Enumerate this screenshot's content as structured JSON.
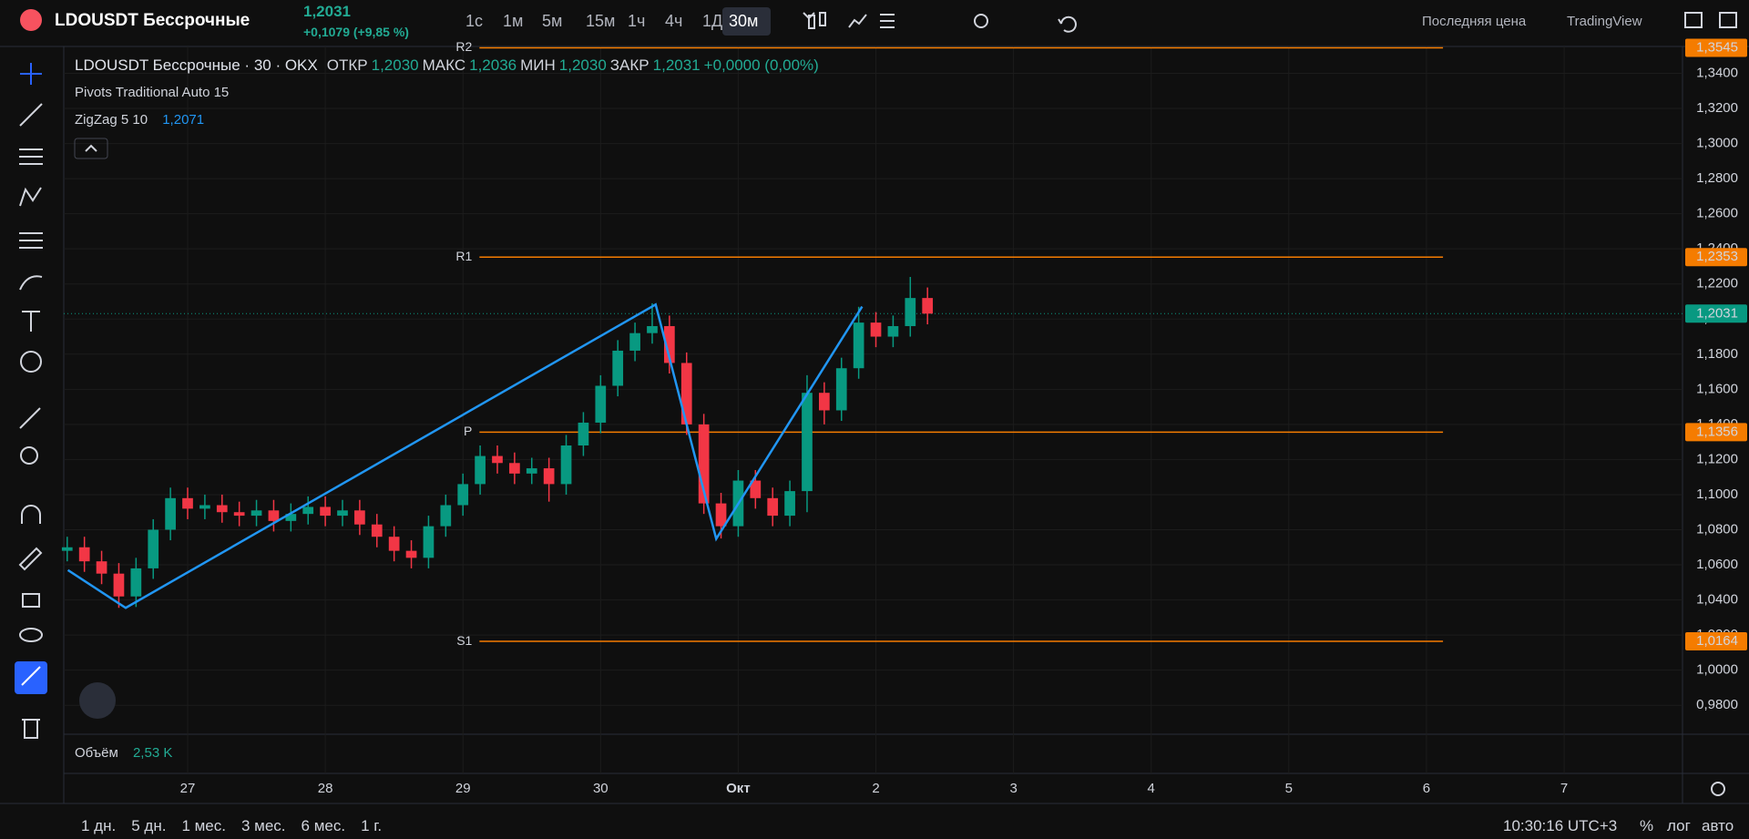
{
  "header": {
    "symbol": "LDOUSDT Бессрочные",
    "price": "1,2031",
    "change": "+0,1079 (+9,85 %)",
    "intervals": [
      "1с",
      "1м",
      "5м",
      "15м",
      "1ч",
      "4ч",
      "1Д",
      "30м"
    ],
    "price_type": "Последняя цена",
    "layout": "TradingView"
  },
  "legend": {
    "title": "LDOUSDT Бессрочные · 30 · OKX",
    "open_label": "ОТКР",
    "open": "1,2030",
    "high_label": "МАКС",
    "high": "1,2036",
    "low_label": "МИН",
    "low": "1,2030",
    "close_label": "ЗАКР",
    "close": "1,2031",
    "change": "+0,0000 (0,00%)",
    "pivots": "Pivots Traditional Auto 15"
  },
  "volume": {
    "label": "Объём",
    "value": "2,53 K"
  },
  "footer": {
    "ranges": [
      "1 дн.",
      "5 дн.",
      "1 мес.",
      "3 мес.",
      "6 мес.",
      "1 г."
    ],
    "time": "10:30:16 UTC+3",
    "percent": "%",
    "log": "лог",
    "auto": "авто"
  },
  "chart_data": {
    "type": "candlestick",
    "x": [
      26.125,
      26.25,
      26.375,
      26.5,
      26.625,
      26.75,
      26.875,
      27.0,
      27.125,
      27.25,
      27.375,
      27.5,
      27.625,
      27.75,
      27.875,
      28.0,
      28.125,
      28.25,
      28.375,
      28.5,
      28.625,
      28.75,
      28.875,
      29.0,
      29.125,
      29.25,
      29.375,
      29.5,
      29.625,
      29.75,
      29.875,
      30.0,
      30.125,
      30.25,
      30.375,
      30.5,
      30.625,
      30.75,
      30.875,
      31.0,
      31.125,
      31.25,
      31.375,
      31.5,
      31.625,
      31.75,
      31.875,
      32.0,
      32.125,
      32.25,
      32.375
    ],
    "open": [
      1.068,
      1.07,
      1.062,
      1.055,
      1.042,
      1.058,
      1.08,
      1.098,
      1.092,
      1.094,
      1.09,
      1.088,
      1.091,
      1.085,
      1.089,
      1.093,
      1.088,
      1.091,
      1.083,
      1.076,
      1.068,
      1.064,
      1.082,
      1.094,
      1.106,
      1.122,
      1.118,
      1.112,
      1.115,
      1.106,
      1.128,
      1.141,
      1.162,
      1.182,
      1.192,
      1.196,
      1.175,
      1.14,
      1.095,
      1.082,
      1.108,
      1.098,
      1.088,
      1.102,
      1.158,
      1.148,
      1.172,
      1.198,
      1.19,
      1.196,
      1.212
    ],
    "high": [
      1.076,
      1.076,
      1.068,
      1.061,
      1.064,
      1.086,
      1.104,
      1.104,
      1.1,
      1.1,
      1.096,
      1.097,
      1.097,
      1.095,
      1.099,
      1.099,
      1.097,
      1.097,
      1.089,
      1.082,
      1.074,
      1.088,
      1.1,
      1.112,
      1.128,
      1.128,
      1.124,
      1.121,
      1.121,
      1.134,
      1.147,
      1.168,
      1.188,
      1.198,
      1.209,
      1.202,
      1.181,
      1.146,
      1.101,
      1.114,
      1.114,
      1.104,
      1.108,
      1.168,
      1.164,
      1.178,
      1.207,
      1.204,
      1.202,
      1.224,
      1.218
    ],
    "low": [
      1.062,
      1.056,
      1.049,
      1.0355,
      1.036,
      1.052,
      1.074,
      1.086,
      1.086,
      1.084,
      1.082,
      1.082,
      1.079,
      1.079,
      1.083,
      1.082,
      1.082,
      1.077,
      1.07,
      1.062,
      1.058,
      1.058,
      1.076,
      1.088,
      1.1,
      1.112,
      1.106,
      1.106,
      1.096,
      1.1,
      1.122,
      1.135,
      1.156,
      1.176,
      1.186,
      1.169,
      1.134,
      1.089,
      1.075,
      1.076,
      1.092,
      1.082,
      1.082,
      1.09,
      1.14,
      1.142,
      1.166,
      1.184,
      1.184,
      1.19,
      1.197
    ],
    "close": [
      1.07,
      1.062,
      1.055,
      1.042,
      1.058,
      1.08,
      1.098,
      1.092,
      1.094,
      1.09,
      1.088,
      1.091,
      1.085,
      1.089,
      1.093,
      1.088,
      1.091,
      1.083,
      1.076,
      1.068,
      1.064,
      1.082,
      1.094,
      1.106,
      1.122,
      1.118,
      1.112,
      1.115,
      1.106,
      1.128,
      1.141,
      1.162,
      1.182,
      1.192,
      1.196,
      1.175,
      1.14,
      1.095,
      1.082,
      1.108,
      1.098,
      1.088,
      1.102,
      1.158,
      1.148,
      1.172,
      1.198,
      1.19,
      1.196,
      1.212,
      1.2031
    ],
    "up_color": "#089981",
    "down_color": "#f23645",
    "xlim": [
      26.1,
      37.86
    ],
    "xticks": [
      27,
      28,
      29,
      30,
      {
        "value": 31,
        "label": "Окт"
      },
      {
        "value": 32,
        "label": "2"
      },
      {
        "value": 33,
        "label": "3"
      },
      {
        "value": 34,
        "label": "4"
      },
      {
        "value": 35,
        "label": "5"
      },
      {
        "value": 36,
        "label": "6"
      },
      {
        "value": 37,
        "label": "7"
      }
    ],
    "ylim": [
      0.9635,
      1.3553
    ],
    "yticks": [
      {
        "value": 0.98,
        "label": "0,9800"
      },
      {
        "value": 1.0,
        "label": "1,0000"
      },
      {
        "value": 1.02,
        "label": "1,0200"
      },
      {
        "value": 1.04,
        "label": "1,0400"
      },
      {
        "value": 1.06,
        "label": "1,0600"
      },
      {
        "value": 1.08,
        "label": "1,0800"
      },
      {
        "value": 1.1,
        "label": "1,1000"
      },
      {
        "value": 1.12,
        "label": "1,1200"
      },
      {
        "value": 1.14,
        "label": "1,1400"
      },
      {
        "value": 1.16,
        "label": "1,1600"
      },
      {
        "value": 1.18,
        "label": "1,1800"
      },
      {
        "value": 1.2,
        "label": "1,2000"
      },
      {
        "value": 1.22,
        "label": "1,2200"
      },
      {
        "value": 1.24,
        "label": "1,2400"
      },
      {
        "value": 1.26,
        "label": "1,2600"
      },
      {
        "value": 1.28,
        "label": "1,2800"
      },
      {
        "value": 1.3,
        "label": "1,3000"
      },
      {
        "value": 1.32,
        "label": "1,3200"
      },
      {
        "value": 1.34,
        "label": "1,3400"
      }
    ],
    "grid": true,
    "zigzag": {
      "name": "ZigZag 5 10",
      "color": "#2196f3",
      "x": [
        26.13,
        26.55,
        30.4,
        30.84,
        31.9
      ],
      "values": [
        1.057,
        1.0355,
        1.2083,
        1.0748,
        1.2071
      ],
      "last_label": "1,2071"
    },
    "pivot_color": "#f57c00",
    "pivot_xlim": [
      29.12,
      36.12
    ],
    "pivots": [
      {
        "name": "R2",
        "value": 1.3545,
        "label": "1,3545"
      },
      {
        "name": "R1",
        "value": 1.2353,
        "label": "1,2353"
      },
      {
        "name": "P",
        "value": 1.1356,
        "label": "1,1356"
      },
      {
        "name": "S1",
        "value": 1.0164,
        "label": "1,0164"
      }
    ],
    "last_price": {
      "value": 1.2031,
      "label": "1,2031",
      "color": "#089981"
    }
  }
}
